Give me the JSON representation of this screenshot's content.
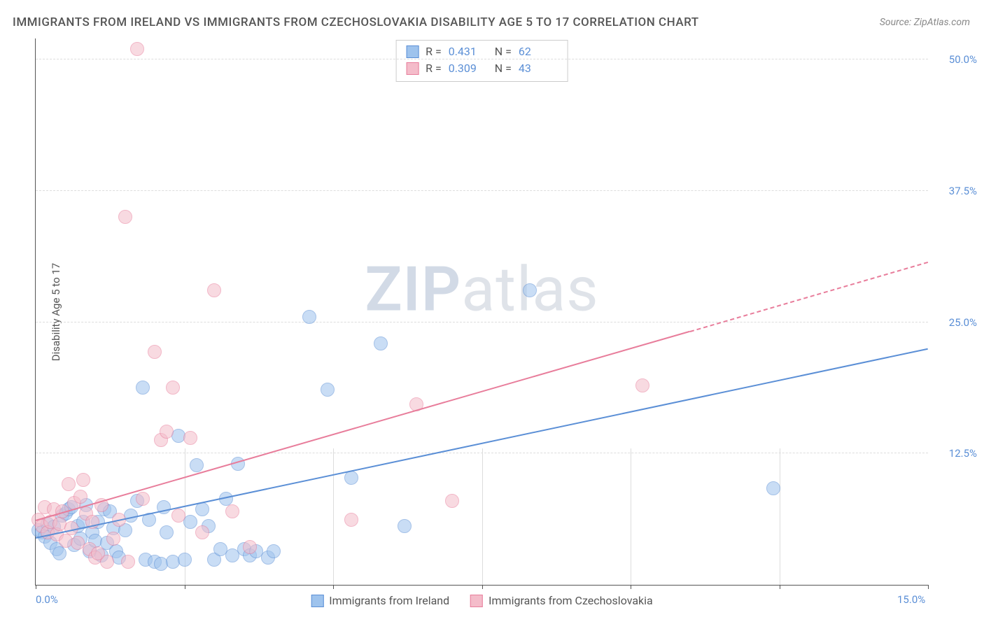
{
  "title": "IMMIGRANTS FROM IRELAND VS IMMIGRANTS FROM CZECHOSLOVAKIA DISABILITY AGE 5 TO 17 CORRELATION CHART",
  "source": "Source: ZipAtlas.com",
  "y_axis_label": "Disability Age 5 to 17",
  "watermark_zip": "ZIP",
  "watermark_atlas": "atlas",
  "chart": {
    "type": "scatter",
    "background_color": "#ffffff",
    "grid_color": "#dddddd",
    "axis_color": "#555555",
    "tick_label_color": "#5b8fd6",
    "xlim": [
      0,
      15
    ],
    "ylim": [
      0,
      52
    ],
    "x_ticks": [
      0,
      2.5,
      5,
      7.5,
      10,
      12.5,
      15
    ],
    "x_tick_labels": {
      "0": "0.0%",
      "15": "15.0%"
    },
    "y_ticks": [
      12.5,
      25,
      37.5,
      50
    ],
    "y_tick_labels": {
      "12.5": "12.5%",
      "25": "25.0%",
      "37.5": "37.5%",
      "50": "50.0%"
    },
    "point_radius": 10,
    "point_opacity": 0.55,
    "series": [
      {
        "name": "Immigrants from Ireland",
        "color_fill": "#9ec3ed",
        "color_stroke": "#5b8fd6",
        "r_label": "R =",
        "r_value": "0.431",
        "n_label": "N =",
        "n_value": "62",
        "trend": {
          "x1": 0,
          "y1": 4.5,
          "x2": 15,
          "y2": 22.5,
          "dash_from_x": 15
        },
        "points": [
          [
            0.05,
            5.2
          ],
          [
            0.1,
            5.0
          ],
          [
            0.15,
            4.6
          ],
          [
            0.2,
            5.8
          ],
          [
            0.25,
            4.0
          ],
          [
            0.3,
            5.5
          ],
          [
            0.35,
            3.4
          ],
          [
            0.4,
            3.0
          ],
          [
            0.45,
            6.6
          ],
          [
            0.5,
            6.8
          ],
          [
            0.55,
            7.2
          ],
          [
            0.6,
            7.4
          ],
          [
            0.65,
            3.8
          ],
          [
            0.7,
            5.6
          ],
          [
            0.75,
            4.4
          ],
          [
            0.8,
            6.0
          ],
          [
            0.85,
            7.6
          ],
          [
            0.9,
            3.2
          ],
          [
            0.95,
            5.0
          ],
          [
            1.0,
            4.2
          ],
          [
            1.05,
            6.0
          ],
          [
            1.1,
            2.8
          ],
          [
            1.15,
            7.2
          ],
          [
            1.2,
            4.0
          ],
          [
            1.25,
            7.0
          ],
          [
            1.3,
            5.4
          ],
          [
            1.35,
            3.2
          ],
          [
            1.4,
            2.6
          ],
          [
            1.5,
            5.2
          ],
          [
            1.6,
            6.6
          ],
          [
            1.7,
            8.0
          ],
          [
            1.8,
            18.8
          ],
          [
            1.85,
            2.4
          ],
          [
            1.9,
            6.2
          ],
          [
            2.0,
            2.2
          ],
          [
            2.1,
            2.0
          ],
          [
            2.15,
            7.4
          ],
          [
            2.2,
            5.0
          ],
          [
            2.3,
            2.2
          ],
          [
            2.4,
            14.2
          ],
          [
            2.5,
            2.4
          ],
          [
            2.6,
            6.0
          ],
          [
            2.7,
            11.4
          ],
          [
            2.8,
            7.2
          ],
          [
            2.9,
            5.6
          ],
          [
            3.0,
            2.4
          ],
          [
            3.1,
            3.4
          ],
          [
            3.2,
            8.2
          ],
          [
            3.3,
            2.8
          ],
          [
            3.4,
            11.5
          ],
          [
            3.5,
            3.4
          ],
          [
            3.6,
            2.8
          ],
          [
            3.7,
            3.2
          ],
          [
            3.9,
            2.6
          ],
          [
            4.0,
            3.2
          ],
          [
            4.6,
            25.5
          ],
          [
            4.9,
            18.6
          ],
          [
            5.3,
            10.2
          ],
          [
            5.8,
            23.0
          ],
          [
            6.2,
            5.6
          ],
          [
            8.3,
            28.0
          ],
          [
            12.4,
            9.2
          ]
        ]
      },
      {
        "name": "Immigrants from Czechoslovakia",
        "color_fill": "#f4bcca",
        "color_stroke": "#e87d9b",
        "r_label": "R =",
        "r_value": "0.309",
        "n_label": "N =",
        "n_value": "43",
        "trend": {
          "x1": 0,
          "y1": 6.2,
          "x2": 11,
          "y2": 24.2,
          "dash_from_x": 11,
          "dash_to_x": 15,
          "dash_to_y": 30.8
        },
        "points": [
          [
            0.05,
            6.2
          ],
          [
            0.1,
            5.6
          ],
          [
            0.15,
            7.4
          ],
          [
            0.2,
            5.0
          ],
          [
            0.25,
            6.0
          ],
          [
            0.3,
            7.2
          ],
          [
            0.35,
            4.8
          ],
          [
            0.4,
            5.8
          ],
          [
            0.45,
            7.0
          ],
          [
            0.5,
            4.2
          ],
          [
            0.55,
            9.6
          ],
          [
            0.6,
            5.4
          ],
          [
            0.65,
            7.8
          ],
          [
            0.7,
            4.0
          ],
          [
            0.75,
            8.4
          ],
          [
            0.8,
            10.0
          ],
          [
            0.85,
            6.8
          ],
          [
            0.9,
            3.4
          ],
          [
            0.95,
            6.0
          ],
          [
            1.0,
            2.6
          ],
          [
            1.1,
            7.6
          ],
          [
            1.2,
            2.2
          ],
          [
            1.3,
            4.4
          ],
          [
            1.4,
            6.2
          ],
          [
            1.5,
            35.0
          ],
          [
            1.55,
            2.2
          ],
          [
            1.7,
            51.0
          ],
          [
            1.8,
            8.2
          ],
          [
            2.0,
            22.2
          ],
          [
            2.1,
            13.8
          ],
          [
            2.2,
            14.6
          ],
          [
            2.3,
            18.8
          ],
          [
            2.4,
            6.6
          ],
          [
            2.6,
            14.0
          ],
          [
            2.8,
            5.0
          ],
          [
            3.0,
            28.0
          ],
          [
            3.3,
            7.0
          ],
          [
            3.6,
            3.6
          ],
          [
            5.3,
            6.2
          ],
          [
            6.4,
            17.2
          ],
          [
            7.0,
            8.0
          ],
          [
            10.2,
            19.0
          ],
          [
            1.05,
            3.0
          ]
        ]
      }
    ],
    "bottom_legend": [
      {
        "swatch_fill": "#9ec3ed",
        "swatch_stroke": "#5b8fd6",
        "label": "Immigrants from Ireland"
      },
      {
        "swatch_fill": "#f4bcca",
        "swatch_stroke": "#e87d9b",
        "label": "Immigrants from Czechoslovakia"
      }
    ]
  }
}
